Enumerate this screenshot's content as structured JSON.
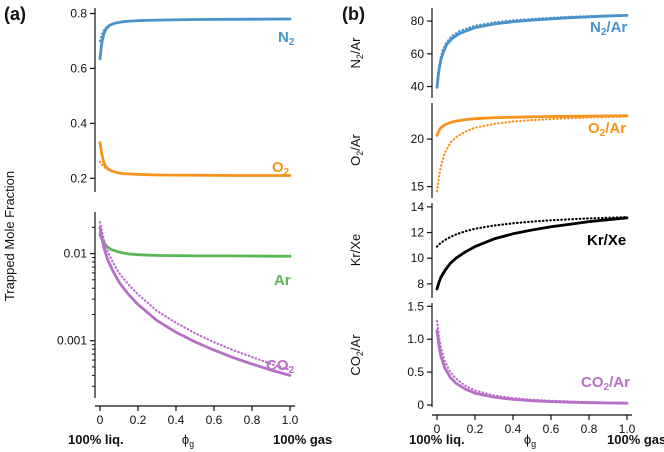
{
  "panels": {
    "a": {
      "label": "(a)",
      "ylabel": "Trapped Mole Fraction"
    },
    "b": {
      "label": "(b)"
    }
  },
  "xaxis": {
    "left_label": "100% liq.",
    "right_label": "100% gas",
    "symbol": "ϕ",
    "subscript": "g",
    "ticks": [
      "0",
      "0.2",
      "0.4",
      "0.6",
      "0.8",
      "1.0"
    ]
  },
  "colors": {
    "N2": "#4a93c9",
    "O2": "#f7941d",
    "Ar": "#5fb55a",
    "CO2": "#b76fc7",
    "KrXe": "#000000"
  },
  "chart_data": [
    {
      "type": "line",
      "id": "a_upper",
      "xlim": [
        0,
        1
      ],
      "ylim": [
        0.15,
        0.82
      ],
      "yticks": [
        0.2,
        0.4,
        0.6,
        0.8
      ],
      "ytick_labels": [
        "0.2",
        "0.4",
        "0.6",
        "0.8"
      ],
      "series": [
        {
          "name": "N2",
          "label_main": "N",
          "label_sub": "2",
          "color_key": "N2",
          "style": "solid",
          "x": [
            0,
            0.005,
            0.01,
            0.02,
            0.03,
            0.05,
            0.08,
            0.12,
            0.2,
            0.3,
            0.5,
            0.7,
            1.0
          ],
          "y": [
            0.635,
            0.67,
            0.695,
            0.725,
            0.742,
            0.757,
            0.765,
            0.77,
            0.774,
            0.776,
            0.778,
            0.779,
            0.78
          ]
        },
        {
          "name": "N2 (dotted)",
          "color_key": "N2",
          "style": "dotted",
          "x": [
            0,
            0.005,
            0.01,
            0.02,
            0.03,
            0.05,
            0.08,
            0.12,
            0.2,
            0.3,
            0.5,
            0.7,
            1.0
          ],
          "y": [
            0.7,
            0.712,
            0.722,
            0.738,
            0.748,
            0.758,
            0.765,
            0.77,
            0.774,
            0.776,
            0.778,
            0.779,
            0.78
          ]
        },
        {
          "name": "O2",
          "label_main": "O",
          "label_sub": "2",
          "color_key": "O2",
          "style": "solid",
          "x": [
            0,
            0.005,
            0.01,
            0.02,
            0.03,
            0.05,
            0.08,
            0.12,
            0.2,
            0.3,
            0.5,
            0.7,
            1.0
          ],
          "y": [
            0.33,
            0.305,
            0.285,
            0.258,
            0.243,
            0.23,
            0.222,
            0.217,
            0.214,
            0.212,
            0.211,
            0.21,
            0.21
          ]
        },
        {
          "name": "O2 (dotted)",
          "color_key": "O2",
          "style": "dotted",
          "x": [
            0,
            0.005,
            0.01,
            0.02,
            0.03,
            0.05,
            0.08,
            0.12,
            0.2,
            0.3,
            0.5,
            0.7,
            1.0
          ],
          "y": [
            0.26,
            0.255,
            0.25,
            0.242,
            0.236,
            0.228,
            0.222,
            0.218,
            0.215,
            0.213,
            0.211,
            0.21,
            0.21
          ]
        }
      ]
    },
    {
      "type": "line",
      "id": "a_lower",
      "yscale": "log",
      "xlim": [
        0,
        1
      ],
      "ylim": [
        0.00022,
        0.03
      ],
      "yticks": [
        0.001,
        0.01
      ],
      "ytick_labels": [
        "0.001",
        "0.01"
      ],
      "xticks": [
        0,
        0.2,
        0.4,
        0.6,
        0.8,
        1.0
      ],
      "series": [
        {
          "name": "Ar",
          "label_main": "Ar",
          "label_sub": "",
          "color_key": "Ar",
          "style": "solid",
          "x": [
            0,
            0.01,
            0.02,
            0.04,
            0.06,
            0.1,
            0.15,
            0.2,
            0.3,
            0.5,
            0.7,
            1.0
          ],
          "y": [
            0.0165,
            0.0145,
            0.0132,
            0.0118,
            0.0111,
            0.0104,
            0.0099,
            0.0097,
            0.0095,
            0.0094,
            0.0094,
            0.0093
          ]
        },
        {
          "name": "Ar (dotted)",
          "color_key": "Ar",
          "style": "dotted",
          "x": [
            0,
            0.01,
            0.02,
            0.04,
            0.06,
            0.1,
            0.15,
            0.2,
            0.3,
            0.5,
            0.7,
            1.0
          ],
          "y": [
            0.0175,
            0.0152,
            0.0136,
            0.012,
            0.0112,
            0.0105,
            0.01,
            0.0098,
            0.0096,
            0.0095,
            0.0094,
            0.0094
          ]
        },
        {
          "name": "CO2",
          "label_main": "CO",
          "label_sub": "2",
          "color_key": "CO2",
          "style": "solid",
          "x": [
            0,
            0.01,
            0.02,
            0.04,
            0.07,
            0.1,
            0.15,
            0.2,
            0.3,
            0.4,
            0.5,
            0.6,
            0.7,
            0.8,
            0.9,
            1.0
          ],
          "y": [
            0.02,
            0.015,
            0.0118,
            0.0085,
            0.0062,
            0.0047,
            0.0034,
            0.0026,
            0.0017,
            0.00125,
            0.00097,
            0.00078,
            0.00064,
            0.00054,
            0.00046,
            0.0004
          ]
        },
        {
          "name": "CO2 (dotted)",
          "color_key": "CO2",
          "style": "dotted",
          "x": [
            0,
            0.01,
            0.02,
            0.04,
            0.07,
            0.1,
            0.15,
            0.2,
            0.3,
            0.4,
            0.5,
            0.6,
            0.7,
            0.8,
            0.9,
            1.0
          ],
          "y": [
            0.023,
            0.018,
            0.0145,
            0.0105,
            0.0078,
            0.006,
            0.0044,
            0.0034,
            0.0022,
            0.0016,
            0.00122,
            0.00096,
            0.00078,
            0.00065,
            0.00054,
            0.00046
          ]
        }
      ]
    },
    {
      "type": "line",
      "id": "b_n2ar",
      "xlim": [
        0,
        1
      ],
      "ylim": [
        33,
        88
      ],
      "yticks": [
        40,
        60,
        80
      ],
      "ytick_labels": [
        "40",
        "60",
        "80"
      ],
      "ylabel_main": "N",
      "ylabel_sub": "2",
      "ylabel_tail": "/Ar",
      "series": [
        {
          "name": "N2/Ar",
          "label_main": "N",
          "label_sub": "2",
          "label_tail": "/Ar",
          "color_key": "N2",
          "style": "solid",
          "x": [
            0,
            0.01,
            0.02,
            0.03,
            0.05,
            0.08,
            0.12,
            0.2,
            0.3,
            0.4,
            0.5,
            0.6,
            0.7,
            0.8,
            0.9,
            1.0
          ],
          "y": [
            39.5,
            50,
            56,
            60,
            65.5,
            69.5,
            72.5,
            76,
            78.2,
            79.6,
            80.6,
            81.4,
            82.1,
            82.6,
            83.1,
            83.5
          ]
        },
        {
          "name": "N2/Ar (dotted)",
          "color_key": "N2",
          "style": "dotted",
          "x": [
            0,
            0.01,
            0.02,
            0.03,
            0.05,
            0.08,
            0.12,
            0.2,
            0.3,
            0.4,
            0.5,
            0.6,
            0.7,
            0.8,
            0.9,
            1.0
          ],
          "y": [
            42,
            52,
            58,
            62,
            67,
            71,
            74,
            77.2,
            79.2,
            80.4,
            81.3,
            82,
            82.6,
            83,
            83.4,
            83.7
          ]
        }
      ]
    },
    {
      "type": "line",
      "id": "b_o2ar",
      "xlim": [
        0,
        1
      ],
      "ylim": [
        13.8,
        23.8
      ],
      "yticks": [
        15,
        20
      ],
      "ytick_labels": [
        "15",
        "20"
      ],
      "ylabel_main": "O",
      "ylabel_sub": "2",
      "ylabel_tail": "/Ar",
      "series": [
        {
          "name": "O2/Ar",
          "label_main": "O",
          "label_sub": "2",
          "label_tail": "/Ar",
          "color_key": "O2",
          "style": "solid",
          "x": [
            0,
            0.01,
            0.02,
            0.04,
            0.07,
            0.1,
            0.15,
            0.2,
            0.3,
            0.4,
            0.5,
            0.6,
            0.7,
            0.8,
            0.9,
            1.0
          ],
          "y": [
            20.4,
            20.9,
            21.2,
            21.5,
            21.75,
            21.9,
            22.05,
            22.15,
            22.25,
            22.3,
            22.35,
            22.38,
            22.4,
            22.42,
            22.44,
            22.45
          ]
        },
        {
          "name": "O2/Ar (dotted)",
          "color_key": "O2",
          "style": "dotted",
          "x": [
            0,
            0.01,
            0.02,
            0.04,
            0.07,
            0.1,
            0.15,
            0.2,
            0.3,
            0.4,
            0.5,
            0.6,
            0.7,
            0.8,
            0.9,
            1.0
          ],
          "y": [
            14.5,
            16,
            17.1,
            18.5,
            19.6,
            20.2,
            20.8,
            21.2,
            21.6,
            21.85,
            22.0,
            22.1,
            22.2,
            22.27,
            22.33,
            22.38
          ]
        }
      ]
    },
    {
      "type": "line",
      "id": "b_krxe",
      "xlim": [
        0,
        1
      ],
      "ylim": [
        6.9,
        14.3
      ],
      "yticks": [
        8,
        10,
        12,
        14
      ],
      "ytick_labels": [
        "8",
        "10",
        "12",
        "14"
      ],
      "ylabel_main": "Kr/Xe",
      "ylabel_sub": "",
      "ylabel_tail": "",
      "series": [
        {
          "name": "Kr/Xe",
          "label_main": "Kr/Xe",
          "label_sub": "",
          "label_tail": "",
          "color_key": "KrXe",
          "style": "solid",
          "x": [
            0,
            0.01,
            0.02,
            0.04,
            0.07,
            0.1,
            0.15,
            0.2,
            0.3,
            0.4,
            0.5,
            0.6,
            0.7,
            0.8,
            0.9,
            1.0
          ],
          "y": [
            7.6,
            8.1,
            8.5,
            9.0,
            9.6,
            10.0,
            10.5,
            10.9,
            11.5,
            11.9,
            12.2,
            12.45,
            12.65,
            12.85,
            13.0,
            13.15
          ]
        },
        {
          "name": "Kr/Xe (dotted)",
          "color_key": "KrXe",
          "style": "dotted",
          "x": [
            0,
            0.01,
            0.02,
            0.04,
            0.07,
            0.1,
            0.15,
            0.2,
            0.3,
            0.4,
            0.5,
            0.6,
            0.7,
            0.8,
            0.9,
            1.0
          ],
          "y": [
            10.9,
            11.05,
            11.2,
            11.4,
            11.65,
            11.85,
            12.1,
            12.3,
            12.55,
            12.72,
            12.85,
            12.95,
            13.03,
            13.1,
            13.15,
            13.2
          ]
        }
      ]
    },
    {
      "type": "line",
      "id": "b_co2ar",
      "xlim": [
        0,
        1
      ],
      "ylim": [
        -0.03,
        1.55
      ],
      "yticks": [
        0,
        0.5,
        1.0,
        1.5
      ],
      "ytick_labels": [
        "0",
        "0.5",
        "1.0",
        "1.5"
      ],
      "xticks": [
        0,
        0.2,
        0.4,
        0.6,
        0.8,
        1.0
      ],
      "ylabel_main": "CO",
      "ylabel_sub": "2",
      "ylabel_tail": "/Ar",
      "series": [
        {
          "name": "CO2/Ar",
          "label_main": "CO",
          "label_sub": "2",
          "label_tail": "/Ar",
          "color_key": "CO2",
          "style": "solid",
          "x": [
            0,
            0.01,
            0.02,
            0.04,
            0.07,
            0.1,
            0.15,
            0.2,
            0.3,
            0.4,
            0.5,
            0.6,
            0.7,
            0.8,
            0.9,
            1.0
          ],
          "y": [
            1.13,
            0.9,
            0.75,
            0.57,
            0.42,
            0.33,
            0.24,
            0.18,
            0.12,
            0.085,
            0.065,
            0.052,
            0.043,
            0.036,
            0.031,
            0.028
          ]
        },
        {
          "name": "CO2/Ar (dotted)",
          "color_key": "CO2",
          "style": "dotted",
          "x": [
            0,
            0.01,
            0.02,
            0.04,
            0.07,
            0.1,
            0.15,
            0.2,
            0.3,
            0.4,
            0.5,
            0.6,
            0.7,
            0.8,
            0.9,
            1.0
          ],
          "y": [
            1.28,
            1.05,
            0.88,
            0.67,
            0.5,
            0.4,
            0.29,
            0.22,
            0.145,
            0.105,
            0.08,
            0.064,
            0.053,
            0.045,
            0.039,
            0.034
          ]
        }
      ]
    }
  ]
}
